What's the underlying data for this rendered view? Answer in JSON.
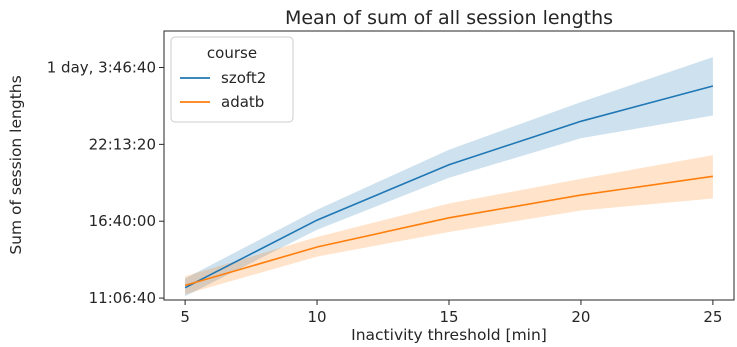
{
  "chart_data": {
    "type": "line",
    "title": "Mean of sum of all session lengths",
    "xlabel": "Inactivity threshold [min]",
    "ylabel": "Sum of session lengths",
    "x": [
      5,
      10,
      15,
      20,
      25
    ],
    "xticks": [
      5,
      10,
      15,
      20,
      25
    ],
    "xlim": [
      4.2,
      25.8
    ],
    "yticks": [
      {
        "value": 40000,
        "label": "11:06:40"
      },
      {
        "value": 60000,
        "label": "16:40:00"
      },
      {
        "value": 80000,
        "label": "22:13:20"
      },
      {
        "value": 100000,
        "label": "1 day, 3:46:40"
      }
    ],
    "ylim": [
      39500,
      109500
    ],
    "grid": false,
    "legend": {
      "title": "course",
      "placement": "top-left"
    },
    "series": [
      {
        "name": "szoft2",
        "color": "#1f77b4",
        "values": [
          42700,
          60300,
          74700,
          86000,
          95200
        ],
        "ci_lower": [
          40500,
          57800,
          71300,
          81600,
          87500
        ],
        "ci_upper": [
          45100,
          63000,
          78600,
          91000,
          102700
        ]
      },
      {
        "name": "adatb",
        "color": "#ff7f0e",
        "values": [
          43300,
          53300,
          60900,
          66800,
          71700
        ],
        "ci_lower": [
          41000,
          50800,
          57200,
          62800,
          65900
        ],
        "ci_upper": [
          45700,
          55900,
          64600,
          71000,
          77200
        ]
      }
    ]
  }
}
